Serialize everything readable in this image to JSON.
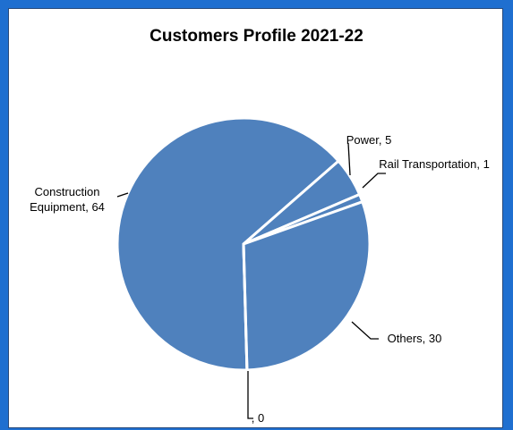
{
  "chart_data": {
    "type": "pie",
    "title": "Customers Profile 2021-22",
    "categories": [
      "Construction Equipment",
      "Power",
      "Rail Transportation",
      "Others",
      null
    ],
    "values": [
      64,
      5,
      1,
      30,
      0
    ],
    "label_separator": ", ",
    "color": "#4f81bd"
  }
}
